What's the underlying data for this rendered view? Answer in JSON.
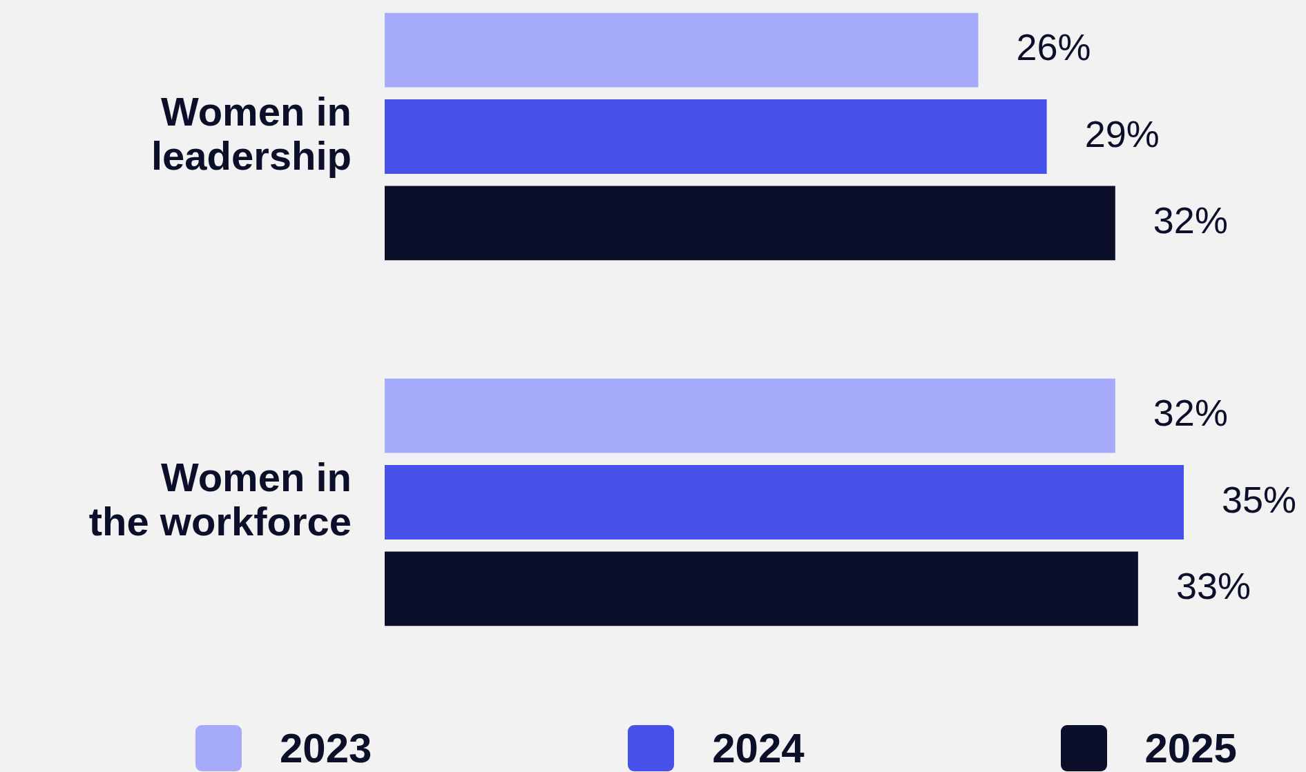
{
  "chart_data": {
    "type": "bar",
    "orientation": "horizontal",
    "categories": [
      "Women in leadership",
      "Women in the workforce"
    ],
    "series": [
      {
        "name": "2023",
        "color": "#a5abfa",
        "values": [
          26,
          32
        ],
        "value_labels": [
          "26%",
          "32%"
        ]
      },
      {
        "name": "2024",
        "color": "#4750e8",
        "values": [
          29,
          35
        ],
        "value_labels": [
          "29%",
          "35%"
        ]
      },
      {
        "name": "2025",
        "color": "#0b0f2a",
        "values": [
          32,
          33
        ],
        "value_labels": [
          "32%",
          "33%"
        ]
      }
    ],
    "xlim": [
      0,
      35
    ],
    "tick_labels": "y",
    "legend": "bottom"
  }
}
